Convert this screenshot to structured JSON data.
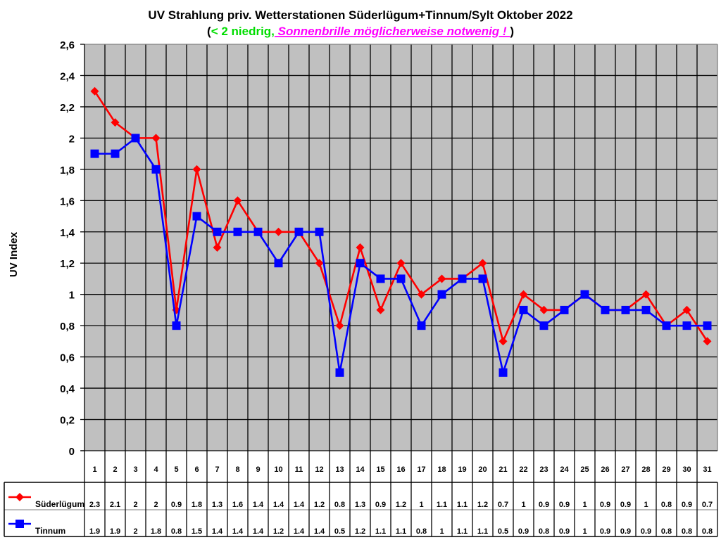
{
  "chart_data": {
    "type": "line",
    "title": "UV Strahlung priv. Wetterstationen Süderlügum+Tinnum/Sylt Oktober 2022",
    "subtitle": {
      "open": "(",
      "low_text": "< 2 niedrig,",
      "warning_text": " Sonnenbrille möglicherweise notwenig ! ",
      "close": " )"
    },
    "xlabel": "",
    "ylabel": "UV Index",
    "ylim": [
      0,
      2.6
    ],
    "yticks": [
      "0",
      "0,2",
      "0,4",
      "0,6",
      "0,8",
      "1",
      "1,2",
      "1,4",
      "1,6",
      "1,8",
      "2",
      "2,2",
      "2,4",
      "2,6"
    ],
    "grid": true,
    "legend_position": "data-table-left",
    "categories": [
      "1",
      "2",
      "3",
      "4",
      "5",
      "6",
      "7",
      "8",
      "9",
      "10",
      "11",
      "12",
      "13",
      "14",
      "15",
      "16",
      "17",
      "18",
      "19",
      "20",
      "21",
      "22",
      "23",
      "24",
      "25",
      "26",
      "27",
      "28",
      "29",
      "30",
      "31"
    ],
    "series": [
      {
        "name": "Süderlügum",
        "color": "#ff0000",
        "marker": "diamond",
        "values": [
          2.3,
          2.1,
          2,
          2,
          0.9,
          1.8,
          1.3,
          1.6,
          1.4,
          1.4,
          1.4,
          1.2,
          0.8,
          1.3,
          0.9,
          1.2,
          1,
          1.1,
          1.1,
          1.2,
          0.7,
          1,
          0.9,
          0.9,
          1,
          0.9,
          0.9,
          1,
          0.8,
          0.9,
          0.7
        ],
        "labels": [
          "2.3",
          "2.1",
          "2",
          "2",
          "0.9",
          "1.8",
          "1.3",
          "1.6",
          "1.4",
          "1.4",
          "1.4",
          "1.2",
          "0.8",
          "1.3",
          "0.9",
          "1.2",
          "1",
          "1.1",
          "1.1",
          "1.2",
          "0.7",
          "1",
          "0.9",
          "0.9",
          "1",
          "0.9",
          "0.9",
          "1",
          "0.8",
          "0.9",
          "0.7"
        ]
      },
      {
        "name": "Tinnum",
        "color": "#0000ff",
        "marker": "square",
        "values": [
          1.9,
          1.9,
          2,
          1.8,
          0.8,
          1.5,
          1.4,
          1.4,
          1.4,
          1.2,
          1.4,
          1.4,
          0.5,
          1.2,
          1.1,
          1.1,
          0.8,
          1,
          1.1,
          1.1,
          0.5,
          0.9,
          0.8,
          0.9,
          1,
          0.9,
          0.9,
          0.9,
          0.8,
          0.8,
          0.8
        ],
        "labels": [
          "1.9",
          "1.9",
          "2",
          "1.8",
          "0.8",
          "1.5",
          "1.4",
          "1.4",
          "1.4",
          "1.2",
          "1.4",
          "1.4",
          "0.5",
          "1.2",
          "1.1",
          "1.1",
          "0.8",
          "1",
          "1.1",
          "1.1",
          "0.5",
          "0.9",
          "0.8",
          "0.9",
          "1",
          "0.9",
          "0.9",
          "0.9",
          "0.8",
          "0.8",
          "0.8"
        ]
      }
    ]
  },
  "colors": {
    "plot_background": "#c0c0c0",
    "subtitle_low": "#00dd00",
    "subtitle_warning": "#ff00ff"
  }
}
